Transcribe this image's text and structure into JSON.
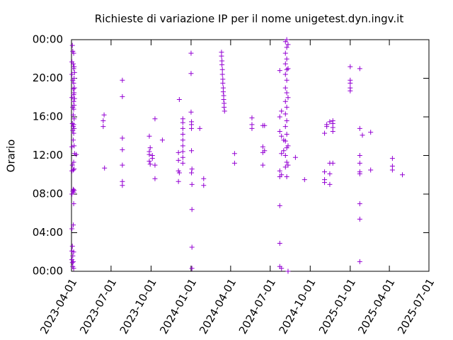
{
  "chart_data": {
    "type": "scatter",
    "title": "Richieste di variazione IP per il nome unigetest.dyn.ingv.it",
    "y_label": "Orario",
    "color": "#9400d3",
    "xlim": [
      "2023-04-01",
      "2025-07-01"
    ],
    "xticks": [
      "2023-04-01",
      "2023-07-01",
      "2023-10-01",
      "2024-01-01",
      "2024-04-01",
      "2024-07-01",
      "2024-10-01",
      "2025-01-01",
      "2025-04-01",
      "2025-07-01"
    ],
    "ylim": [
      0,
      24
    ],
    "yticks": [
      {
        "value": 0,
        "label": "00:00"
      },
      {
        "value": 4,
        "label": "04:00"
      },
      {
        "value": 8,
        "label": "08:00"
      },
      {
        "value": 12,
        "label": "12:00"
      },
      {
        "value": 16,
        "label": "16:00"
      },
      {
        "value": 20,
        "label": "20:00"
      },
      {
        "value": 24,
        "label": "00:00"
      }
    ],
    "x": [
      "2023-04-02",
      "2023-04-02",
      "2023-04-02",
      "2023-04-02",
      "2023-04-02",
      "2023-04-02",
      "2023-04-02",
      "2023-04-02",
      "2023-04-02",
      "2023-04-03",
      "2023-04-03",
      "2023-04-03",
      "2023-04-03",
      "2023-04-03",
      "2023-04-04",
      "2023-04-04",
      "2023-04-04",
      "2023-04-04",
      "2023-04-04",
      "2023-04-04",
      "2023-04-04",
      "2023-04-05",
      "2023-04-05",
      "2023-04-05",
      "2023-04-05",
      "2023-04-05",
      "2023-04-05",
      "2023-04-05",
      "2023-04-05",
      "2023-04-05",
      "2023-04-06",
      "2023-04-06",
      "2023-04-06",
      "2023-04-06",
      "2023-04-06",
      "2023-04-06",
      "2023-04-06",
      "2023-04-06",
      "2023-04-06",
      "2023-04-06",
      "2023-04-06",
      "2023-04-06",
      "2023-04-06",
      "2023-04-07",
      "2023-04-07",
      "2023-04-07",
      "2023-04-07",
      "2023-04-07",
      "2023-04-07",
      "2023-04-07",
      "2023-04-07",
      "2023-04-07",
      "2023-04-08",
      "2023-04-08",
      "2023-04-08",
      "2023-04-08",
      "2023-04-12",
      "2023-06-13",
      "2023-06-13",
      "2023-06-15",
      "2023-06-16",
      "2023-07-27",
      "2023-07-27",
      "2023-07-27",
      "2023-07-27",
      "2023-07-27",
      "2023-07-27",
      "2023-07-27",
      "2023-09-27",
      "2023-09-27",
      "2023-09-27",
      "2023-09-27",
      "2023-09-29",
      "2023-09-29",
      "2023-10-04",
      "2023-10-04",
      "2023-10-10",
      "2023-10-10",
      "2023-10-10",
      "2023-10-27",
      "2023-12-03",
      "2023-12-03",
      "2023-12-03",
      "2023-12-03",
      "2023-12-05",
      "2023-12-05",
      "2023-12-13",
      "2023-12-13",
      "2023-12-13",
      "2023-12-13",
      "2023-12-13",
      "2023-12-13",
      "2023-12-13",
      "2023-12-13",
      "2023-12-13",
      "2024-01-01",
      "2024-01-01",
      "2024-01-01",
      "2024-01-02",
      "2024-01-02",
      "2024-01-02",
      "2024-01-02",
      "2024-01-02",
      "2024-01-03",
      "2024-01-03",
      "2024-01-03",
      "2024-01-03",
      "2024-01-03",
      "2024-01-21",
      "2024-01-30",
      "2024-01-30",
      "2024-03-11",
      "2024-03-11",
      "2024-03-12",
      "2024-03-12",
      "2024-03-13",
      "2024-03-13",
      "2024-03-14",
      "2024-03-14",
      "2024-03-15",
      "2024-03-15",
      "2024-03-16",
      "2024-03-16",
      "2024-03-17",
      "2024-03-17",
      "2024-03-18",
      "2024-04-10",
      "2024-04-10",
      "2024-05-20",
      "2024-05-20",
      "2024-05-20",
      "2024-06-14",
      "2024-06-14",
      "2024-06-14",
      "2024-06-14",
      "2024-06-18",
      "2024-06-18",
      "2024-07-23",
      "2024-07-23",
      "2024-07-23",
      "2024-07-23",
      "2024-07-23",
      "2024-07-23",
      "2024-07-23",
      "2024-07-23",
      "2024-07-27",
      "2024-07-27",
      "2024-07-27",
      "2024-07-27",
      "2024-07-27",
      "2024-08-01",
      "2024-08-01",
      "2024-08-05",
      "2024-08-05",
      "2024-08-05",
      "2024-08-05",
      "2024-08-05",
      "2024-08-05",
      "2024-08-05",
      "2024-08-05",
      "2024-08-05",
      "2024-08-05",
      "2024-08-05",
      "2024-08-08",
      "2024-08-08",
      "2024-08-08",
      "2024-08-08",
      "2024-08-08",
      "2024-08-08",
      "2024-08-08",
      "2024-08-08",
      "2024-08-08",
      "2024-08-08",
      "2024-08-08",
      "2024-08-08",
      "2024-08-11",
      "2024-08-11",
      "2024-08-11",
      "2024-08-11",
      "2024-08-11",
      "2024-08-11",
      "2024-08-28",
      "2024-09-18",
      "2024-11-03",
      "2024-11-03",
      "2024-11-03",
      "2024-11-03",
      "2024-11-08",
      "2024-11-08",
      "2024-11-15",
      "2024-11-15",
      "2024-11-15",
      "2024-11-15",
      "2024-11-22",
      "2024-11-22",
      "2024-11-22",
      "2024-11-22",
      "2024-11-22",
      "2025-01-01",
      "2025-01-01",
      "2025-01-01",
      "2025-01-01",
      "2025-01-01",
      "2025-01-23",
      "2025-01-23",
      "2025-01-23",
      "2025-01-23",
      "2025-01-23",
      "2025-01-23",
      "2025-01-23",
      "2025-01-23",
      "2025-01-23",
      "2025-01-29",
      "2025-02-17",
      "2025-02-17",
      "2025-04-08",
      "2025-04-08",
      "2025-04-08",
      "2025-05-01"
    ],
    "values": [
      21.7,
      20.4,
      18.0,
      12.9,
      10.4,
      8.0,
      4.4,
      2.1,
      1.2,
      23.4,
      15.3,
      11.0,
      2.6,
      0.9,
      22.8,
      19.8,
      17.0,
      14.6,
      8.3,
      1.6,
      0.5,
      21.5,
      18.9,
      16.2,
      15.0,
      13.6,
      10.5,
      8.5,
      4.8,
      1.0,
      22.6,
      21.0,
      19.5,
      18.3,
      17.6,
      16.8,
      15.2,
      14.3,
      11.3,
      8.2,
      7.0,
      2.0,
      0.3,
      21.2,
      20.0,
      18.5,
      17.2,
      15.8,
      14.8,
      13.0,
      10.6,
      8.4,
      20.6,
      19.0,
      17.9,
      12.2,
      12.1,
      15.0,
      15.6,
      16.2,
      10.7,
      19.8,
      18.1,
      13.8,
      12.6,
      11.0,
      9.3,
      8.9,
      14.0,
      12.4,
      12.1,
      11.4,
      11.1,
      12.8,
      11.7,
      12.0,
      15.8,
      11.0,
      9.6,
      13.6,
      12.3,
      11.5,
      10.4,
      9.3,
      17.8,
      10.2,
      11.2,
      11.8,
      12.4,
      13.0,
      13.6,
      14.2,
      14.8,
      15.4,
      15.8,
      22.6,
      20.5,
      16.5,
      15.5,
      14.8,
      15.2,
      12.5,
      10.2,
      10.6,
      9.0,
      6.4,
      2.5,
      0.3,
      14.8,
      9.6,
      8.9,
      22.7,
      22.3,
      21.8,
      21.4,
      20.9,
      20.4,
      19.9,
      19.5,
      19.0,
      18.6,
      18.2,
      17.8,
      17.4,
      17.0,
      16.6,
      12.2,
      11.2,
      15.9,
      15.2,
      14.8,
      15.1,
      12.9,
      12.3,
      11.0,
      15.1,
      12.5,
      20.8,
      16.0,
      14.5,
      10.4,
      9.8,
      6.8,
      2.9,
      0.5,
      16.6,
      14.0,
      12.2,
      10.0,
      0.3,
      12.5,
      13.6,
      23.8,
      22.6,
      21.5,
      20.4,
      19.0,
      17.6,
      16.3,
      15.0,
      13.5,
      12.0,
      10.8,
      24.0,
      23.2,
      22.0,
      20.9,
      19.8,
      18.5,
      17.0,
      15.6,
      14.2,
      12.8,
      11.3,
      9.8,
      23.5,
      21.0,
      18.0,
      13.0,
      11.0,
      0.0,
      11.8,
      9.5,
      14.3,
      10.3,
      9.5,
      9.2,
      15.0,
      15.2,
      15.5,
      10.1,
      9.0,
      11.2,
      14.5,
      14.9,
      15.3,
      15.6,
      11.2,
      21.2,
      19.8,
      19.5,
      18.7,
      19.0,
      14.8,
      10.3,
      10.1,
      7.0,
      5.4,
      1.0,
      21.0,
      12.0,
      11.2,
      14.1,
      14.4,
      10.5,
      11.7,
      10.9,
      10.5,
      10.0
    ]
  }
}
